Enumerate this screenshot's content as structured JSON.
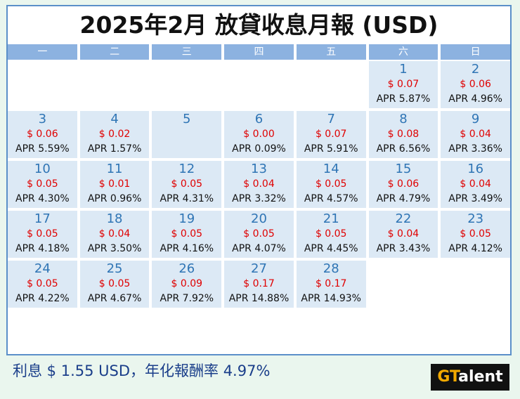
{
  "title": "2025年2月 放貸收息月報 (USD)",
  "weekdays": [
    "一",
    "二",
    "三",
    "四",
    "五",
    "六",
    "日"
  ],
  "days": [
    {
      "day": "",
      "amount": "",
      "apr": ""
    },
    {
      "day": "",
      "amount": "",
      "apr": ""
    },
    {
      "day": "",
      "amount": "",
      "apr": ""
    },
    {
      "day": "",
      "amount": "",
      "apr": ""
    },
    {
      "day": "",
      "amount": "",
      "apr": ""
    },
    {
      "day": "1",
      "amount": "$ 0.07",
      "apr": "APR 5.87%"
    },
    {
      "day": "2",
      "amount": "$ 0.06",
      "apr": "APR 4.96%"
    },
    {
      "day": "3",
      "amount": "$ 0.06",
      "apr": "APR 5.59%"
    },
    {
      "day": "4",
      "amount": "$ 0.02",
      "apr": "APR 1.57%"
    },
    {
      "day": "5",
      "amount": "",
      "apr": ""
    },
    {
      "day": "6",
      "amount": "$ 0.00",
      "apr": "APR 0.09%"
    },
    {
      "day": "7",
      "amount": "$ 0.07",
      "apr": "APR 5.91%"
    },
    {
      "day": "8",
      "amount": "$ 0.08",
      "apr": "APR 6.56%"
    },
    {
      "day": "9",
      "amount": "$ 0.04",
      "apr": "APR 3.36%"
    },
    {
      "day": "10",
      "amount": "$ 0.05",
      "apr": "APR 4.30%"
    },
    {
      "day": "11",
      "amount": "$ 0.01",
      "apr": "APR 0.96%"
    },
    {
      "day": "12",
      "amount": "$ 0.05",
      "apr": "APR 4.31%"
    },
    {
      "day": "13",
      "amount": "$ 0.04",
      "apr": "APR 3.32%"
    },
    {
      "day": "14",
      "amount": "$ 0.05",
      "apr": "APR 4.57%"
    },
    {
      "day": "15",
      "amount": "$ 0.06",
      "apr": "APR 4.79%"
    },
    {
      "day": "16",
      "amount": "$ 0.04",
      "apr": "APR 3.49%"
    },
    {
      "day": "17",
      "amount": "$ 0.05",
      "apr": "APR 4.18%"
    },
    {
      "day": "18",
      "amount": "$ 0.04",
      "apr": "APR 3.50%"
    },
    {
      "day": "19",
      "amount": "$ 0.05",
      "apr": "APR 4.16%"
    },
    {
      "day": "20",
      "amount": "$ 0.05",
      "apr": "APR 4.07%"
    },
    {
      "day": "21",
      "amount": "$ 0.05",
      "apr": "APR 4.45%"
    },
    {
      "day": "22",
      "amount": "$ 0.04",
      "apr": "APR 3.43%"
    },
    {
      "day": "23",
      "amount": "$ 0.05",
      "apr": "APR 4.12%"
    },
    {
      "day": "24",
      "amount": "$ 0.05",
      "apr": "APR 4.22%"
    },
    {
      "day": "25",
      "amount": "$ 0.05",
      "apr": "APR 4.67%"
    },
    {
      "day": "26",
      "amount": "$ 0.09",
      "apr": "APR 7.92%"
    },
    {
      "day": "27",
      "amount": "$ 0.17",
      "apr": "APR 14.88%"
    },
    {
      "day": "28",
      "amount": "$ 0.17",
      "apr": "APR 14.93%"
    }
  ],
  "summary": "利息 $ 1.55 USD，年化報酬率 4.97%",
  "logo": {
    "prefix": "GT",
    "suffix": "alent"
  },
  "colors": {
    "accent": "#2f75b5",
    "amount": "#e00000",
    "header": "#8cb2e0",
    "cell": "#dce9f5",
    "background": "#eaf6ee",
    "logo_accent": "#f2a900"
  }
}
